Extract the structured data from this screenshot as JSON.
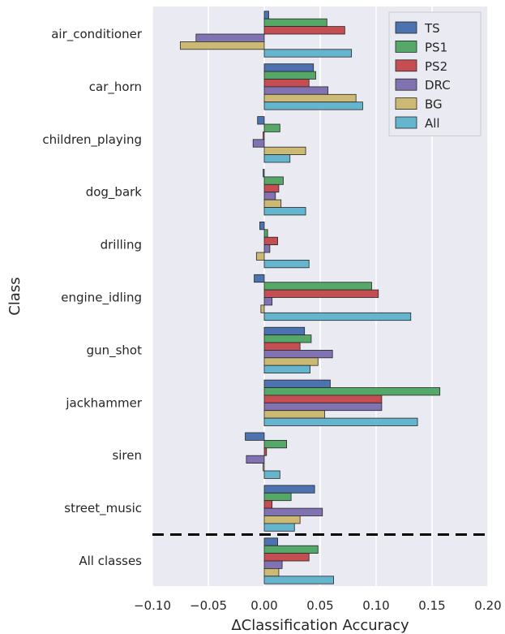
{
  "chart_data": {
    "type": "bar",
    "orientation": "horizontal",
    "title": "",
    "xlabel": "ΔClassification Accuracy",
    "ylabel": "Class",
    "xlim": [
      -0.1,
      0.2
    ],
    "xticks": [
      -0.1,
      -0.05,
      0.0,
      0.05,
      0.1,
      0.15,
      0.2
    ],
    "xtick_labels": [
      "−0.10",
      "−0.05",
      "0.00",
      "0.05",
      "0.10",
      "0.15",
      "0.20"
    ],
    "grid": true,
    "legend_position": "top-right",
    "separator": "dashed line between street_music and All classes",
    "categories": [
      "air_conditioner",
      "car_horn",
      "children_playing",
      "dog_bark",
      "drilling",
      "engine_idling",
      "gun_shot",
      "jackhammer",
      "siren",
      "street_music",
      "All classes"
    ],
    "series": [
      {
        "name": "TS",
        "color": "#4c72b0",
        "values": [
          0.004,
          0.044,
          -0.006,
          -0.001,
          -0.004,
          -0.009,
          0.036,
          0.059,
          -0.017,
          0.045,
          0.012
        ]
      },
      {
        "name": "PS1",
        "color": "#55a868",
        "values": [
          0.056,
          0.046,
          0.014,
          0.017,
          0.003,
          0.096,
          0.042,
          0.157,
          0.02,
          0.024,
          0.048
        ]
      },
      {
        "name": "PS2",
        "color": "#c44e52",
        "values": [
          0.072,
          0.04,
          -0.001,
          0.013,
          0.012,
          0.102,
          0.032,
          0.105,
          0.002,
          0.007,
          0.04
        ]
      },
      {
        "name": "DRC",
        "color": "#8172b2",
        "values": [
          -0.061,
          0.057,
          -0.01,
          0.01,
          0.005,
          0.007,
          0.061,
          0.105,
          -0.016,
          0.052,
          0.016
        ]
      },
      {
        "name": "BG",
        "color": "#ccb974",
        "values": [
          -0.075,
          0.082,
          0.037,
          0.015,
          -0.007,
          -0.003,
          0.048,
          0.054,
          -0.001,
          0.032,
          0.013
        ]
      },
      {
        "name": "All",
        "color": "#64b5cd",
        "values": [
          0.078,
          0.088,
          0.023,
          0.037,
          0.04,
          0.131,
          0.041,
          0.137,
          0.014,
          0.027,
          0.062
        ]
      }
    ]
  }
}
